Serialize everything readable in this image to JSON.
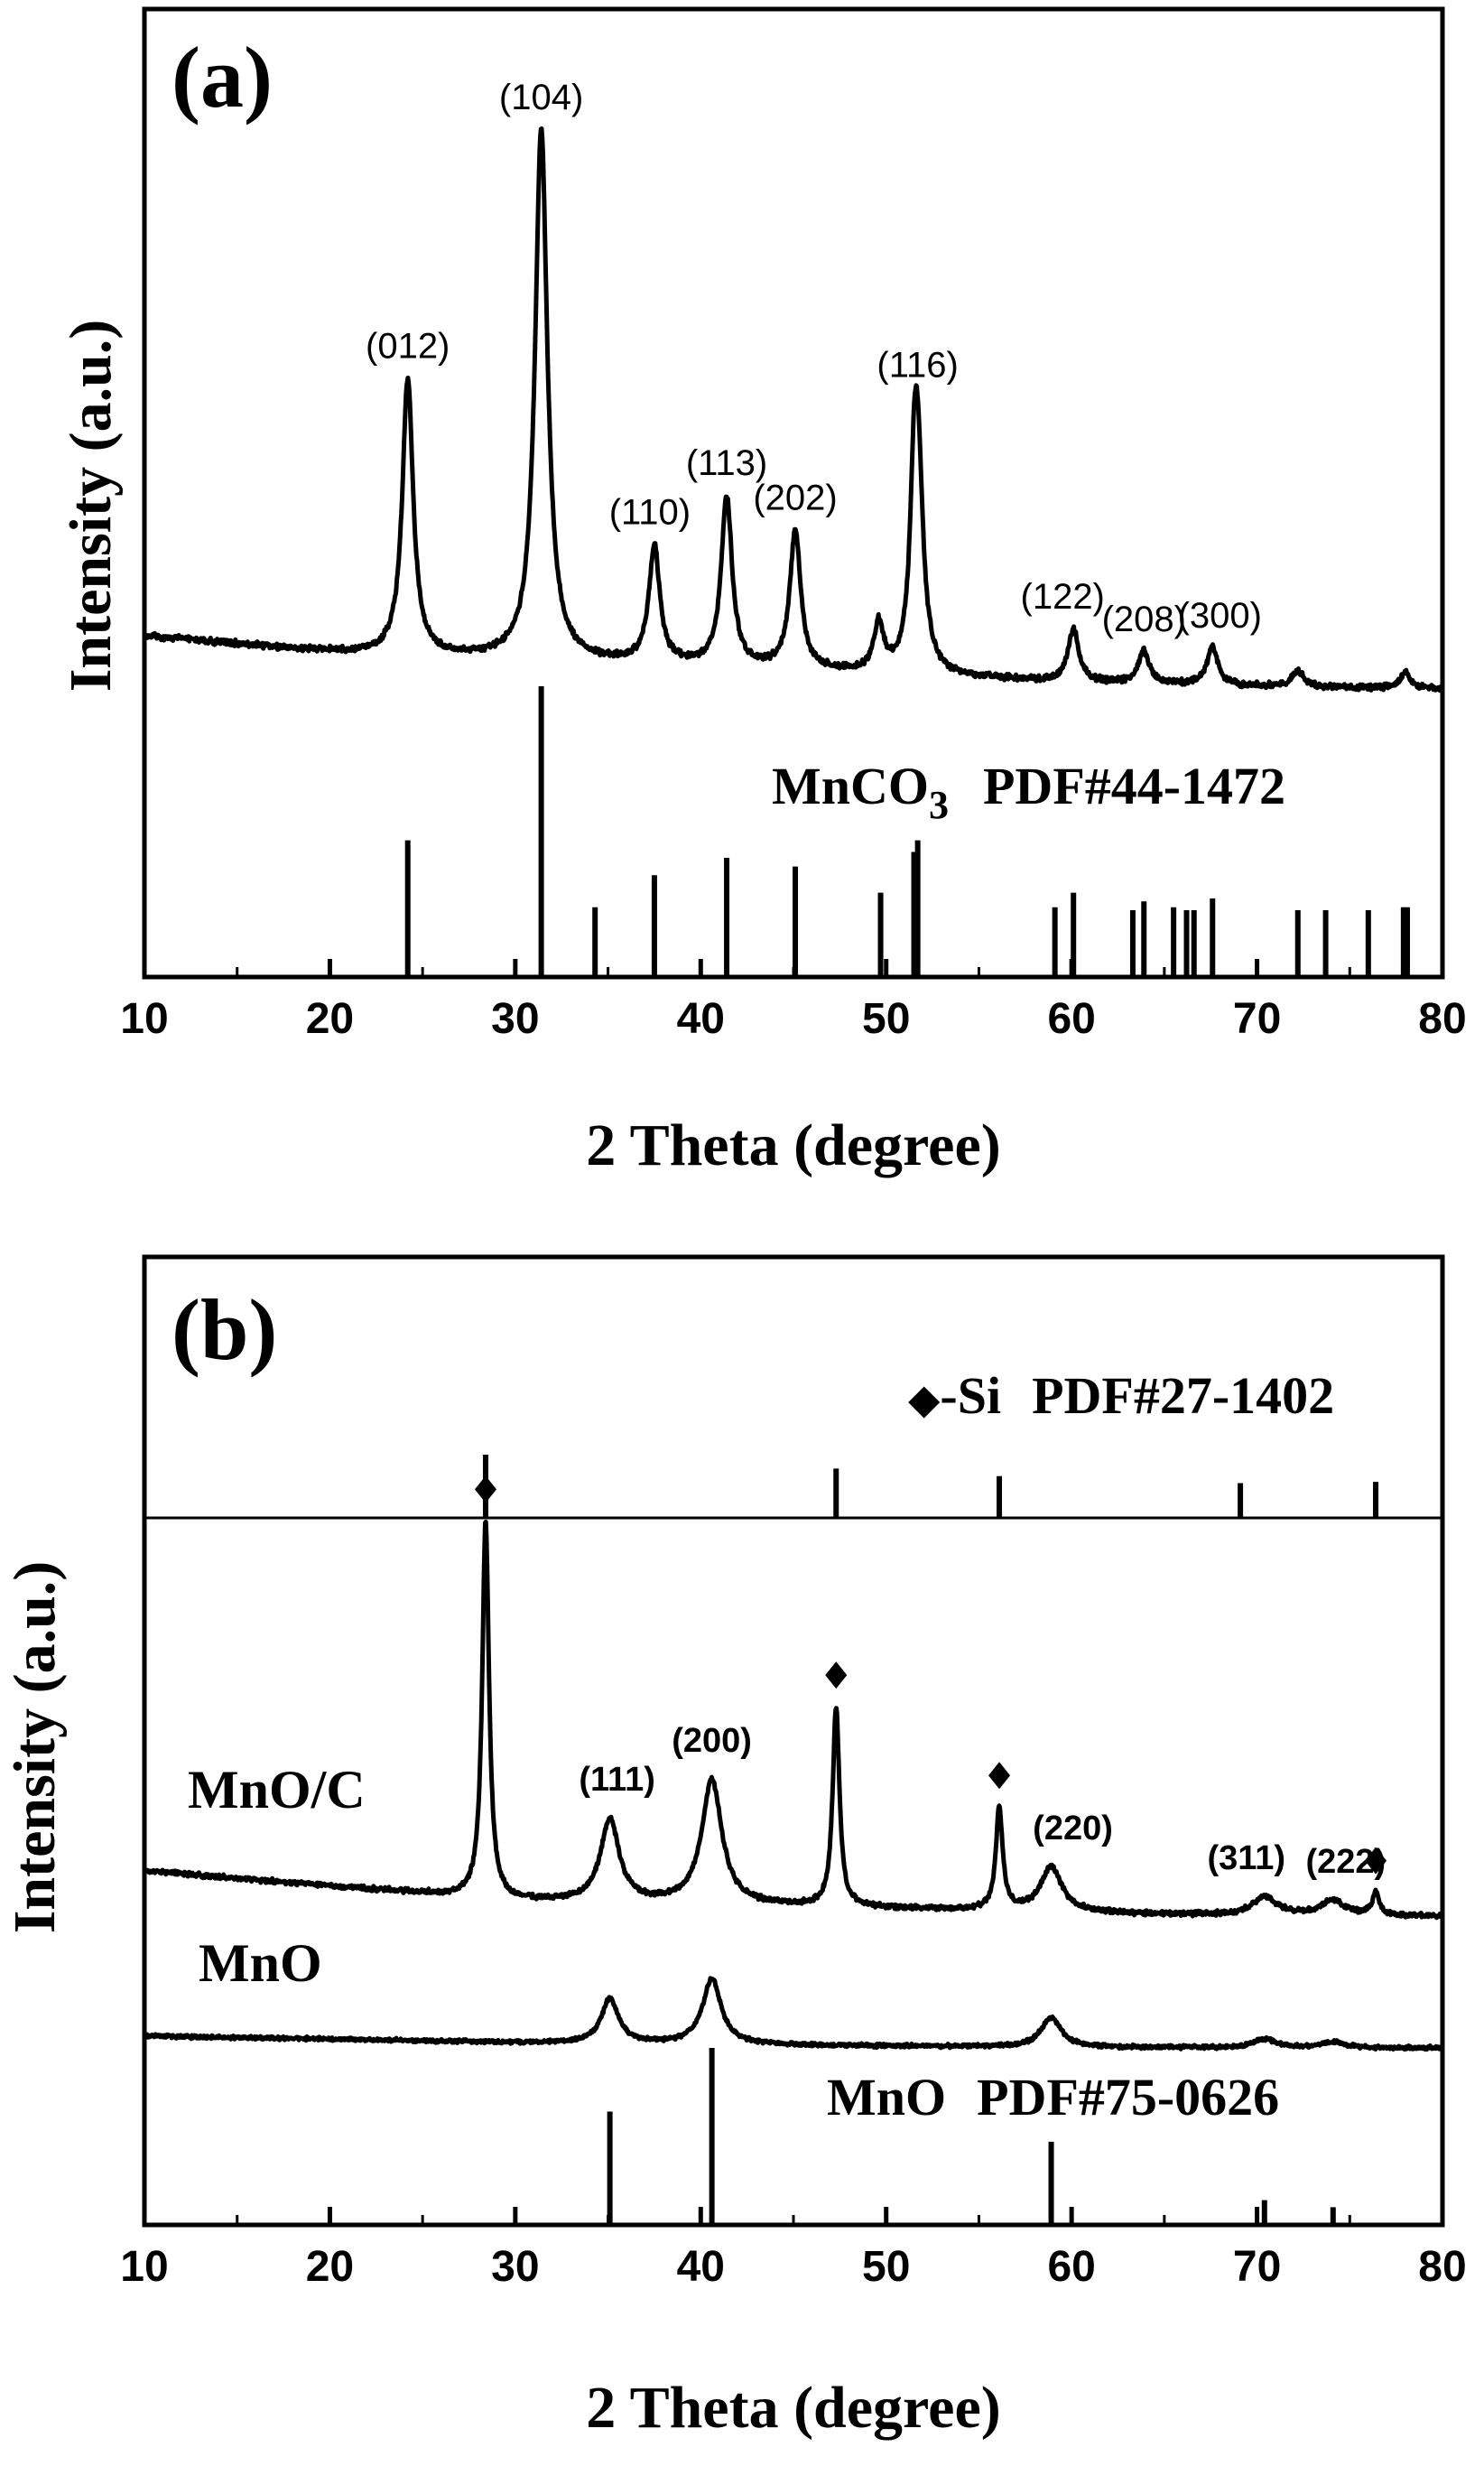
{
  "chart_data": [
    {
      "type": "line",
      "panel_label": "(a)",
      "xlabel": "2 Theta (degree)",
      "ylabel": "Intensity (a.u.)",
      "xlim": [
        10,
        80
      ],
      "xticks": [
        10,
        20,
        30,
        40,
        50,
        60,
        70,
        80
      ],
      "baseline": [
        [
          10,
          0.18
        ],
        [
          20,
          0.15
        ],
        [
          30,
          0.135
        ],
        [
          40,
          0.122
        ],
        [
          50,
          0.108
        ],
        [
          60,
          0.092
        ],
        [
          70,
          0.085
        ],
        [
          80,
          0.08
        ]
      ],
      "peaks": [
        {
          "x": 24.2,
          "h": 0.52,
          "w": 0.35,
          "hkl": "(012)"
        },
        {
          "x": 31.4,
          "h": 1.0,
          "w": 0.4,
          "hkl": "(104)"
        },
        {
          "x": 37.5,
          "h": 0.22,
          "w": 0.35,
          "hkl": "(110)"
        },
        {
          "x": 41.4,
          "h": 0.32,
          "w": 0.35,
          "hkl": "(113)"
        },
        {
          "x": 45.1,
          "h": 0.26,
          "w": 0.35,
          "hkl": "(202)"
        },
        {
          "x": 49.6,
          "h": 0.09,
          "w": 0.3,
          "hkl": ""
        },
        {
          "x": 51.5,
          "h": 0.2,
          "w": 0.25,
          "hkl": ""
        },
        {
          "x": 51.7,
          "h": 0.4,
          "w": 0.35,
          "hkl": "(116)"
        },
        {
          "x": 60.1,
          "h": 0.1,
          "w": 0.35,
          "hkl": "(122)"
        },
        {
          "x": 63.9,
          "h": 0.06,
          "w": 0.35,
          "hkl": "(208)"
        },
        {
          "x": 67.6,
          "h": 0.07,
          "w": 0.35,
          "hkl": "(300)"
        },
        {
          "x": 72.2,
          "h": 0.03,
          "w": 0.35,
          "hkl": ""
        },
        {
          "x": 78.0,
          "h": 0.03,
          "w": 0.35,
          "hkl": ""
        }
      ],
      "reference": {
        "label_main": "MnCO",
        "label_sub": "3",
        "label_card": "PDF#44-1472",
        "lines": [
          {
            "x": 24.2,
            "i": 0.47
          },
          {
            "x": 31.4,
            "i": 1.0
          },
          {
            "x": 34.3,
            "i": 0.24
          },
          {
            "x": 37.5,
            "i": 0.35
          },
          {
            "x": 41.4,
            "i": 0.41
          },
          {
            "x": 45.1,
            "i": 0.38
          },
          {
            "x": 49.7,
            "i": 0.29
          },
          {
            "x": 51.5,
            "i": 0.43
          },
          {
            "x": 51.7,
            "i": 0.47
          },
          {
            "x": 59.1,
            "i": 0.24
          },
          {
            "x": 60.1,
            "i": 0.29
          },
          {
            "x": 63.3,
            "i": 0.23
          },
          {
            "x": 63.9,
            "i": 0.26
          },
          {
            "x": 65.5,
            "i": 0.24
          },
          {
            "x": 66.2,
            "i": 0.23
          },
          {
            "x": 66.6,
            "i": 0.23
          },
          {
            "x": 67.6,
            "i": 0.27
          },
          {
            "x": 72.2,
            "i": 0.23
          },
          {
            "x": 73.7,
            "i": 0.23
          },
          {
            "x": 76.0,
            "i": 0.23
          },
          {
            "x": 77.9,
            "i": 0.24
          },
          {
            "x": 78.1,
            "i": 0.24
          }
        ]
      }
    },
    {
      "type": "line",
      "panel_label": "(b)",
      "xlabel": "2 Theta (degree)",
      "ylabel": "Intensity (a.u.)",
      "xlim": [
        10,
        80
      ],
      "xticks": [
        10,
        20,
        30,
        40,
        50,
        60,
        70,
        80
      ],
      "si_reference": {
        "marker": "◆",
        "label": "-Si",
        "label_card": "PDF#27-1402",
        "lines": [
          {
            "x": 28.4,
            "i": 1.0
          },
          {
            "x": 47.3,
            "i": 0.78
          },
          {
            "x": 56.1,
            "i": 0.66
          },
          {
            "x": 69.1,
            "i": 0.55
          },
          {
            "x": 76.4,
            "i": 0.57
          }
        ]
      },
      "series": [
        {
          "name": "MnO/C",
          "baseline": [
            [
              10,
              0.12
            ],
            [
              20,
              0.08
            ],
            [
              30,
              0.04
            ],
            [
              40,
              0.03
            ],
            [
              50,
              0.02
            ],
            [
              60,
              0.008
            ],
            [
              70,
              0.0
            ],
            [
              80,
              0.0
            ]
          ],
          "peaks": [
            {
              "x": 28.4,
              "h": 1.0,
              "w": 0.22,
              "hkl": "",
              "si": true
            },
            {
              "x": 35.1,
              "h": 0.22,
              "w": 0.6,
              "hkl": "(111)",
              "si": false
            },
            {
              "x": 40.6,
              "h": 0.33,
              "w": 0.65,
              "hkl": "(200)",
              "si": false
            },
            {
              "x": 47.3,
              "h": 0.53,
              "w": 0.22,
              "hkl": "",
              "si": true
            },
            {
              "x": 56.1,
              "h": 0.27,
              "w": 0.22,
              "hkl": "",
              "si": true
            },
            {
              "x": 58.9,
              "h": 0.12,
              "w": 0.7,
              "hkl": "(220)",
              "si": false
            },
            {
              "x": 70.4,
              "h": 0.05,
              "w": 0.8,
              "hkl": "(311)",
              "si": false
            },
            {
              "x": 74.1,
              "h": 0.04,
              "w": 0.8,
              "hkl": "(222)",
              "si": false
            },
            {
              "x": 76.4,
              "h": 0.06,
              "w": 0.22,
              "hkl": "",
              "si": true
            }
          ]
        },
        {
          "name": "MnO",
          "baseline": [
            [
              10,
              0.04
            ],
            [
              20,
              0.03
            ],
            [
              30,
              0.018
            ],
            [
              40,
              0.012
            ],
            [
              50,
              0.006
            ],
            [
              60,
              0.002
            ],
            [
              70,
              0.0
            ],
            [
              80,
              0.0
            ]
          ],
          "peaks": [
            {
              "x": 35.1,
              "h": 0.15,
              "w": 0.55,
              "hkl": ""
            },
            {
              "x": 40.6,
              "h": 0.22,
              "w": 0.6,
              "hkl": ""
            },
            {
              "x": 58.9,
              "h": 0.1,
              "w": 0.65,
              "hkl": ""
            },
            {
              "x": 70.4,
              "h": 0.03,
              "w": 0.7,
              "hkl": ""
            },
            {
              "x": 74.1,
              "h": 0.02,
              "w": 0.7,
              "hkl": ""
            }
          ]
        }
      ],
      "reference": {
        "label_main": "MnO",
        "label_card": "PDF#75-0626",
        "lines": [
          {
            "x": 35.1,
            "i": 0.64
          },
          {
            "x": 40.6,
            "i": 1.0
          },
          {
            "x": 58.9,
            "i": 0.47
          },
          {
            "x": 70.4,
            "i": 0.14
          },
          {
            "x": 74.1,
            "i": 0.1
          }
        ]
      }
    }
  ]
}
